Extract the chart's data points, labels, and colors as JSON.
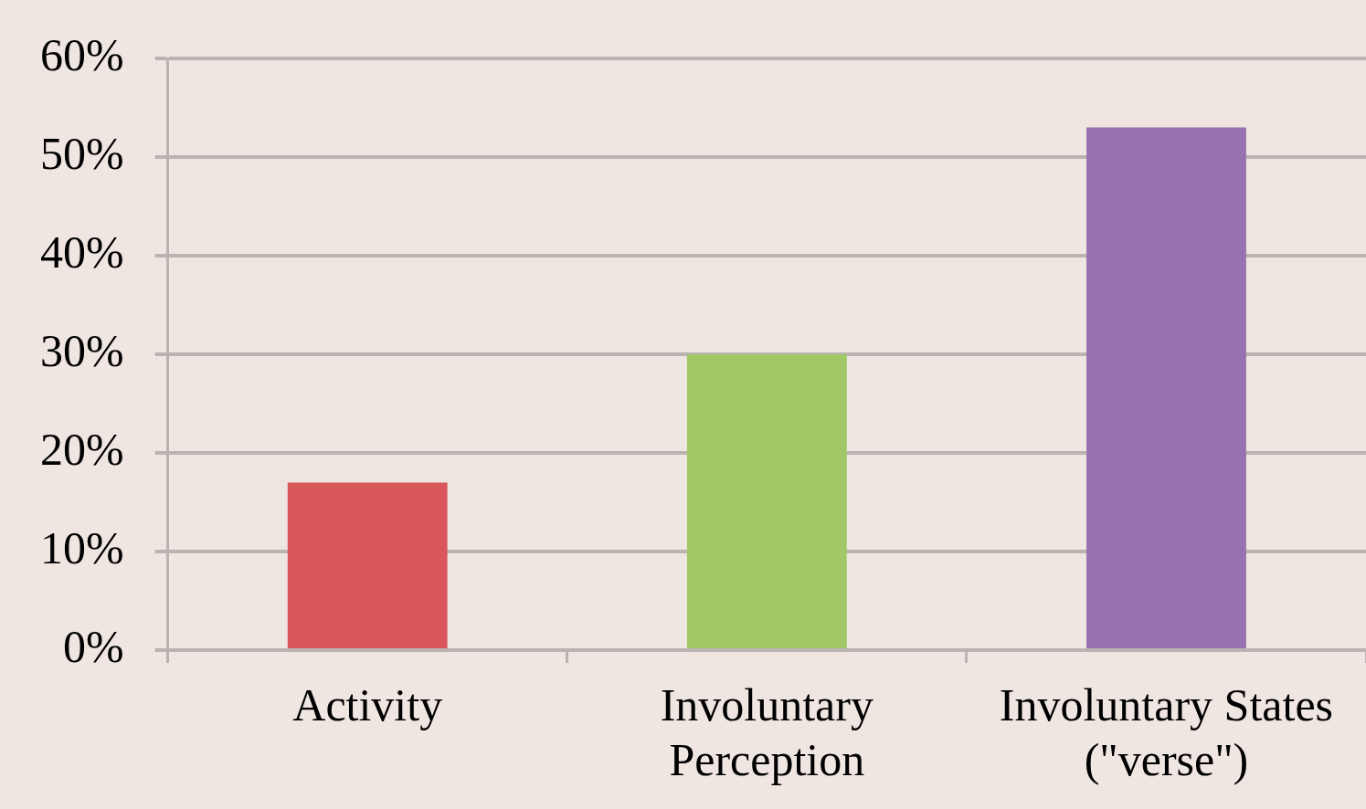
{
  "chart_data": {
    "type": "bar",
    "categories": [
      "Activity",
      "Involuntary Perception",
      "Involuntary States (\"verse\")"
    ],
    "values": [
      17,
      30,
      53
    ],
    "colors": [
      "#d9575a",
      "#a0c866",
      "#9872b0"
    ],
    "ylim": [
      0,
      60
    ],
    "yticks": [
      {
        "value": 0,
        "label": "0%"
      },
      {
        "value": 10,
        "label": "10%"
      },
      {
        "value": 20,
        "label": "20%"
      },
      {
        "value": 30,
        "label": "30%"
      },
      {
        "value": 40,
        "label": "40%"
      },
      {
        "value": 50,
        "label": "50%"
      },
      {
        "value": 60,
        "label": "60%"
      }
    ],
    "grid": "y",
    "legend": false
  }
}
